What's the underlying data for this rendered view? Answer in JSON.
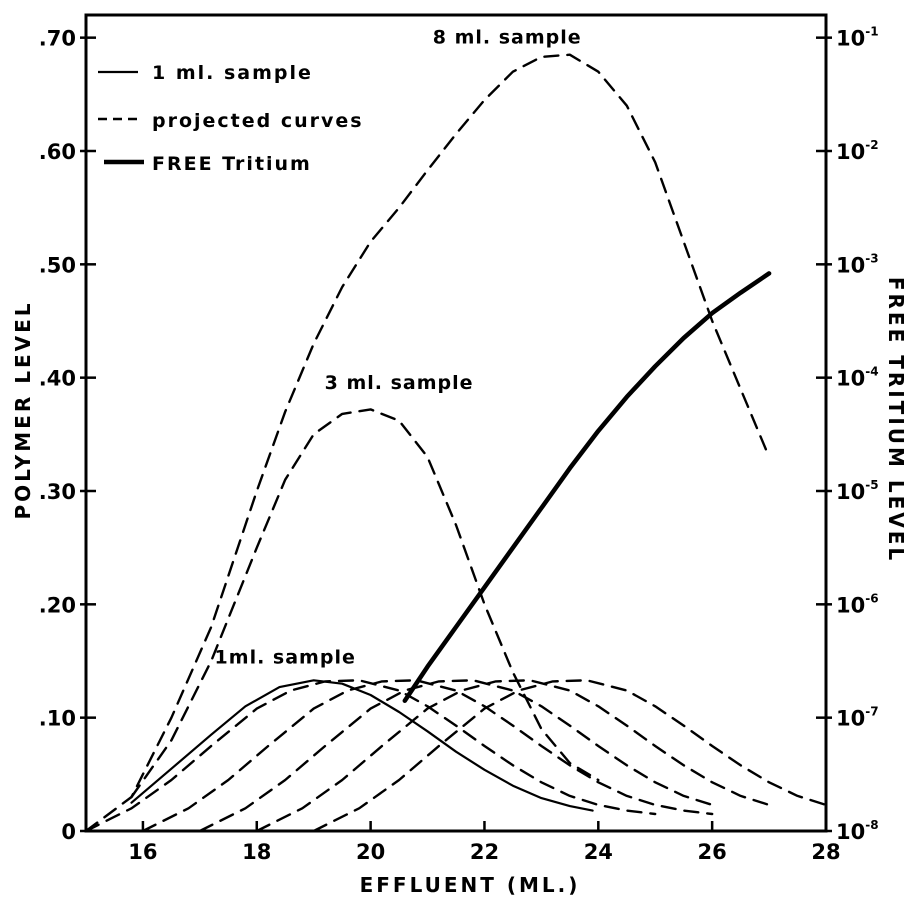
{
  "chart_data": {
    "type": "line",
    "title": "",
    "xlabel": "EFFLUENT (ML.)",
    "ylabel": "POLYMER LEVEL",
    "y2label": "FREE TRITIUM LEVEL",
    "xlim": [
      15,
      28
    ],
    "ylim": [
      0,
      0.72
    ],
    "y2_scale": "log",
    "y2lim_decades": [
      -8,
      -1
    ],
    "x_ticks": [
      16,
      18,
      20,
      22,
      24,
      26,
      28
    ],
    "y_ticks": [
      {
        "value": 0,
        "label": "0"
      },
      {
        "value": 0.1,
        "label": ".10"
      },
      {
        "value": 0.2,
        "label": ".20"
      },
      {
        "value": 0.3,
        "label": ".30"
      },
      {
        "value": 0.4,
        "label": ".40"
      },
      {
        "value": 0.5,
        "label": ".50"
      },
      {
        "value": 0.6,
        "label": ".60"
      },
      {
        "value": 0.7,
        "label": ".70"
      }
    ],
    "y2_ticks": [
      {
        "exp": -8,
        "base": "10",
        "sup": "-8"
      },
      {
        "exp": -7,
        "base": "10",
        "sup": "-7"
      },
      {
        "exp": -6,
        "base": "10",
        "sup": "-6"
      },
      {
        "exp": -5,
        "base": "10",
        "sup": "-5"
      },
      {
        "exp": -4,
        "base": "10",
        "sup": "-4"
      },
      {
        "exp": -3,
        "base": "10",
        "sup": "-3"
      },
      {
        "exp": -2,
        "base": "10",
        "sup": "-2"
      },
      {
        "exp": -1,
        "base": "10",
        "sup": "-1"
      }
    ],
    "legend": {
      "placement": "top-left",
      "entries": [
        {
          "label": "1 ml. sample",
          "style": "solid-thin"
        },
        {
          "label": "projected curves",
          "style": "dashed"
        },
        {
          "label": "FREE Tritium",
          "style": "solid-thick"
        }
      ]
    },
    "annotations": [
      {
        "text": "8 ml. sample",
        "x": 22.4,
        "y": 0.695
      },
      {
        "text": "3 ml. sample",
        "x": 20.5,
        "y": 0.39
      },
      {
        "text": "1ml. sample",
        "x": 18.5,
        "y": 0.148
      }
    ],
    "series": [
      {
        "style": "solid-thin",
        "x": [
          15.8,
          16.5,
          17.2,
          17.8,
          18.4,
          19.0,
          19.5,
          20.0,
          20.5,
          21.0,
          21.5,
          22.0,
          22.5,
          23.0,
          23.5,
          23.9
        ],
        "y": [
          0.025,
          0.055,
          0.085,
          0.11,
          0.127,
          0.133,
          0.13,
          0.12,
          0.105,
          0.088,
          0.07,
          0.054,
          0.04,
          0.029,
          0.022,
          0.018
        ]
      },
      {
        "style": "dashed",
        "x": [
          15.0,
          15.8,
          16.5,
          17.2,
          18.0,
          18.6,
          19.2,
          19.8,
          20.5,
          21.0,
          21.5,
          22.0,
          22.5,
          23.0,
          23.5,
          24.0,
          24.5,
          25.0
        ],
        "y": [
          0.0,
          0.02,
          0.045,
          0.075,
          0.108,
          0.124,
          0.132,
          0.133,
          0.124,
          0.11,
          0.093,
          0.075,
          0.058,
          0.043,
          0.031,
          0.023,
          0.018,
          0.015
        ]
      },
      {
        "style": "dashed",
        "x": [
          16.0,
          16.8,
          17.5,
          18.2,
          19.0,
          19.6,
          20.2,
          20.8,
          21.5,
          22.0,
          22.5,
          23.0,
          23.5,
          24.0,
          24.5,
          25.0,
          25.5,
          26.0
        ],
        "y": [
          0.0,
          0.02,
          0.045,
          0.075,
          0.108,
          0.124,
          0.132,
          0.133,
          0.124,
          0.11,
          0.093,
          0.075,
          0.058,
          0.043,
          0.031,
          0.023,
          0.018,
          0.015
        ]
      },
      {
        "style": "dashed",
        "x": [
          17.0,
          17.8,
          18.5,
          19.2,
          20.0,
          20.6,
          21.2,
          21.8,
          22.5,
          23.0,
          23.5,
          24.0,
          24.5,
          25.0,
          25.5,
          26.0
        ],
        "y": [
          0.0,
          0.02,
          0.045,
          0.075,
          0.108,
          0.124,
          0.132,
          0.133,
          0.124,
          0.11,
          0.093,
          0.075,
          0.058,
          0.043,
          0.031,
          0.023
        ]
      },
      {
        "style": "dashed",
        "x": [
          18.0,
          18.8,
          19.5,
          20.2,
          21.0,
          21.6,
          22.2,
          22.8,
          23.5,
          24.0,
          24.5,
          25.0,
          25.5,
          26.0,
          26.5,
          27.0
        ],
        "y": [
          0.0,
          0.02,
          0.045,
          0.075,
          0.108,
          0.124,
          0.132,
          0.133,
          0.124,
          0.11,
          0.093,
          0.075,
          0.058,
          0.043,
          0.031,
          0.023
        ]
      },
      {
        "style": "dashed",
        "x": [
          19.0,
          19.8,
          20.5,
          21.2,
          22.0,
          22.6,
          23.2,
          23.8,
          24.5,
          25.0,
          25.5,
          26.0,
          26.5,
          27.0,
          27.5,
          28.0
        ],
        "y": [
          0.0,
          0.02,
          0.045,
          0.075,
          0.108,
          0.124,
          0.132,
          0.133,
          0.124,
          0.11,
          0.093,
          0.075,
          0.058,
          0.043,
          0.031,
          0.023
        ]
      },
      {
        "style": "dashed",
        "x": [
          15.8,
          16.5,
          17.2,
          18.0,
          18.5,
          19.0,
          19.5,
          20.0,
          20.5,
          21.0,
          21.5,
          22.0,
          22.5,
          23.0,
          23.5,
          24.0
        ],
        "y": [
          0.03,
          0.08,
          0.15,
          0.25,
          0.31,
          0.35,
          0.368,
          0.372,
          0.362,
          0.33,
          0.27,
          0.2,
          0.14,
          0.09,
          0.06,
          0.045
        ]
      },
      {
        "style": "dashed",
        "x": [
          15.0,
          15.8,
          16.5,
          17.2,
          18.0,
          18.5,
          19.0,
          19.5,
          20.0,
          20.5,
          21.0,
          21.5,
          22.0,
          22.5,
          23.0,
          23.5,
          24.0,
          24.5,
          25.0,
          25.5,
          26.0,
          26.5,
          27.0
        ],
        "y": [
          0.0,
          0.03,
          0.1,
          0.18,
          0.3,
          0.37,
          0.43,
          0.48,
          0.52,
          0.55,
          0.583,
          0.615,
          0.645,
          0.67,
          0.683,
          0.685,
          0.67,
          0.64,
          0.59,
          0.52,
          0.45,
          0.39,
          0.33
        ]
      },
      {
        "style": "solid-thick",
        "x": [
          20.6,
          21.0,
          21.5,
          22.0,
          22.5,
          23.0,
          23.5,
          24.0,
          24.5,
          25.0,
          25.5,
          26.0,
          26.5,
          27.0
        ],
        "y2_exp": [
          -6.85,
          -6.55,
          -6.2,
          -5.85,
          -5.5,
          -5.15,
          -4.8,
          -4.47,
          -4.17,
          -3.9,
          -3.65,
          -3.43,
          -3.25,
          -3.08
        ]
      }
    ]
  }
}
